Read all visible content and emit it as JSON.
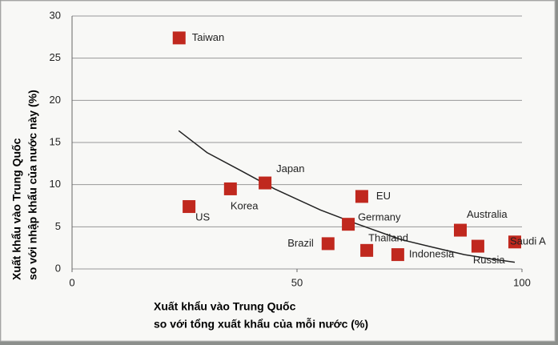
{
  "chart_data": {
    "type": "scatter",
    "x_label": [
      "Xuất khẩu vào Trung Quốc",
      "so với tổng xuất khẩu của mỗi nước (%)"
    ],
    "y_label": [
      "Xuất khẩu vào Trung Quốc",
      "so với nhập khẩu của nước này (%)"
    ],
    "xlim": [
      0,
      100
    ],
    "xticks": [
      0,
      50,
      100
    ],
    "ylim": [
      0,
      30
    ],
    "yticks": [
      0,
      5,
      10,
      15,
      20,
      25,
      30
    ],
    "grid": true,
    "color": "#c0281e",
    "labels": [
      "Taiwan",
      "US",
      "Korea",
      "Japan",
      "EU",
      "Germany",
      "Brazil",
      "Thailand",
      "Indonesia",
      "Australia",
      "Russia",
      "Saudi A"
    ],
    "x": [
      23.8,
      26.0,
      35.2,
      42.9,
      64.4,
      61.4,
      56.9,
      65.5,
      72.4,
      86.3,
      90.2,
      98.4
    ],
    "y": [
      27.4,
      7.4,
      9.5,
      10.2,
      8.6,
      5.3,
      3.0,
      2.2,
      1.7,
      4.6,
      2.7,
      3.2
    ],
    "trend": {
      "x": [
        23.7,
        30,
        37.4,
        45,
        55.2,
        63,
        73.0,
        80,
        87.2,
        93,
        98.4
      ],
      "y": [
        16.4,
        13.8,
        11.7,
        9.5,
        7.0,
        5.4,
        3.5,
        2.6,
        1.7,
        1.2,
        0.8
      ]
    }
  }
}
